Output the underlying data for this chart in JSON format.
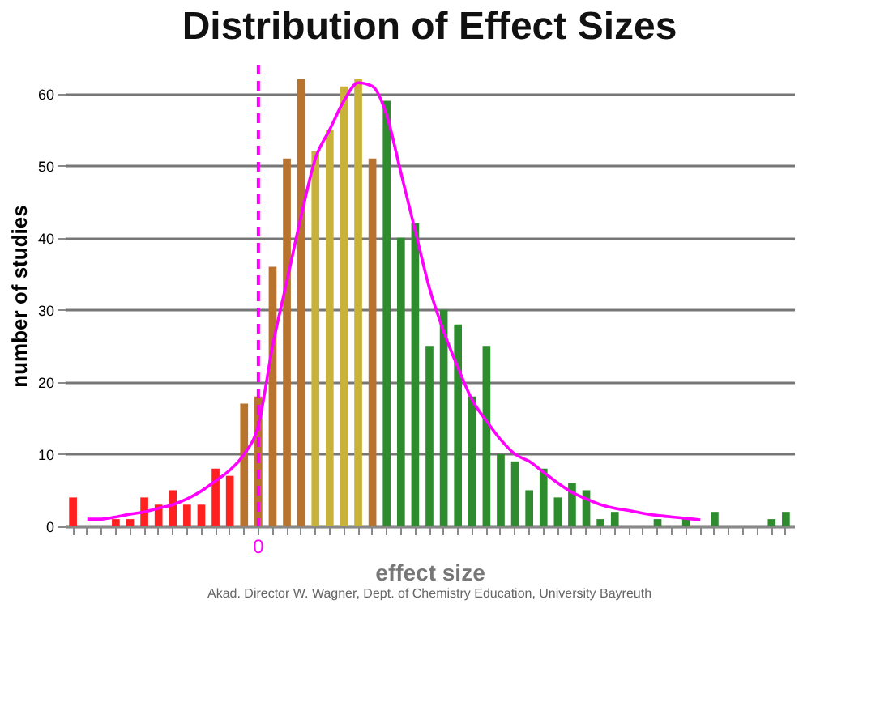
{
  "chart_data": {
    "type": "bar",
    "title": "Distribution of Effect Sizes",
    "xlabel": "effect size",
    "ylabel": "number of studies",
    "categories": [
      null,
      null,
      null,
      null,
      null,
      null,
      null,
      null,
      null,
      null,
      null,
      null,
      null,
      "0",
      null,
      null,
      null,
      null,
      null,
      null,
      null,
      null,
      null,
      null,
      null,
      null,
      null,
      null,
      null,
      null,
      null,
      null,
      null,
      null,
      null,
      null,
      null,
      null,
      null,
      null,
      null,
      null,
      null,
      null,
      null,
      null,
      null,
      null,
      null,
      null,
      null
    ],
    "series": [
      {
        "values": [
          4,
          0,
          0,
          1,
          1,
          4,
          3,
          5,
          3,
          3,
          8,
          7,
          17,
          18,
          36,
          51,
          62,
          52,
          55,
          61,
          62,
          51,
          59,
          40,
          42,
          25,
          30,
          28,
          18,
          25,
          10,
          9,
          5,
          8,
          4,
          6,
          5,
          1,
          2,
          0,
          0,
          1,
          0,
          1,
          0,
          2,
          0,
          0,
          0,
          1,
          2
        ],
        "colors": [
          "#ff2020",
          "#ff2020",
          "#ff2020",
          "#ff2020",
          "#ff2020",
          "#ff2020",
          "#ff2020",
          "#ff2020",
          "#ff2020",
          "#ff2020",
          "#ff2020",
          "#ff2020",
          "#b8732e",
          "#b8732e",
          "#b8732e",
          "#b8732e",
          "#b8732e",
          "#c9b23a",
          "#c9b23a",
          "#c9b23a",
          "#c9b23a",
          "#b8732e",
          "#2e8b2e",
          "#2e8b2e",
          "#2e8b2e",
          "#2e8b2e",
          "#2e8b2e",
          "#2e8b2e",
          "#2e8b2e",
          "#2e8b2e",
          "#2e8b2e",
          "#2e8b2e",
          "#2e8b2e",
          "#2e8b2e",
          "#2e8b2e",
          "#2e8b2e",
          "#2e8b2e",
          "#2e8b2e",
          "#2e8b2e",
          "#2e8b2e",
          "#2e8b2e",
          "#2e8b2e",
          "#2e8b2e",
          "#2e8b2e",
          "#2e8b2e",
          "#2e8b2e",
          "#2e8b2e",
          "#2e8b2e",
          "#2e8b2e",
          "#2e8b2e",
          "#2e8b2e"
        ]
      },
      {
        "type": "line",
        "color": "#ff00ff",
        "values": [
          null,
          1,
          1,
          1.3,
          1.7,
          2,
          2.5,
          3,
          3.8,
          4.9,
          6.3,
          7.8,
          10,
          14,
          25,
          34,
          43,
          51,
          55,
          59,
          61.5,
          61,
          57,
          49,
          41,
          33,
          27,
          22,
          17.5,
          14.6,
          12,
          10,
          9,
          7.5,
          6,
          4.7,
          3.8,
          3,
          2.5,
          2.2,
          1.8,
          1.5,
          1.3,
          1.1,
          0.9,
          null,
          null,
          null,
          null,
          null,
          null
        ]
      }
    ],
    "ylim": [
      0,
      64
    ],
    "yticks": [
      0,
      10,
      20,
      30,
      40,
      50,
      60
    ],
    "grid": "y",
    "legend": false,
    "ref_lines": [
      {
        "axis": "x",
        "value": "0",
        "color": "#ff00ff",
        "line_style": "dashed"
      }
    ],
    "annotations": [
      "Akad. Director W. Wagner, Dept. of Chemistry Education, University Bayreuth"
    ]
  }
}
